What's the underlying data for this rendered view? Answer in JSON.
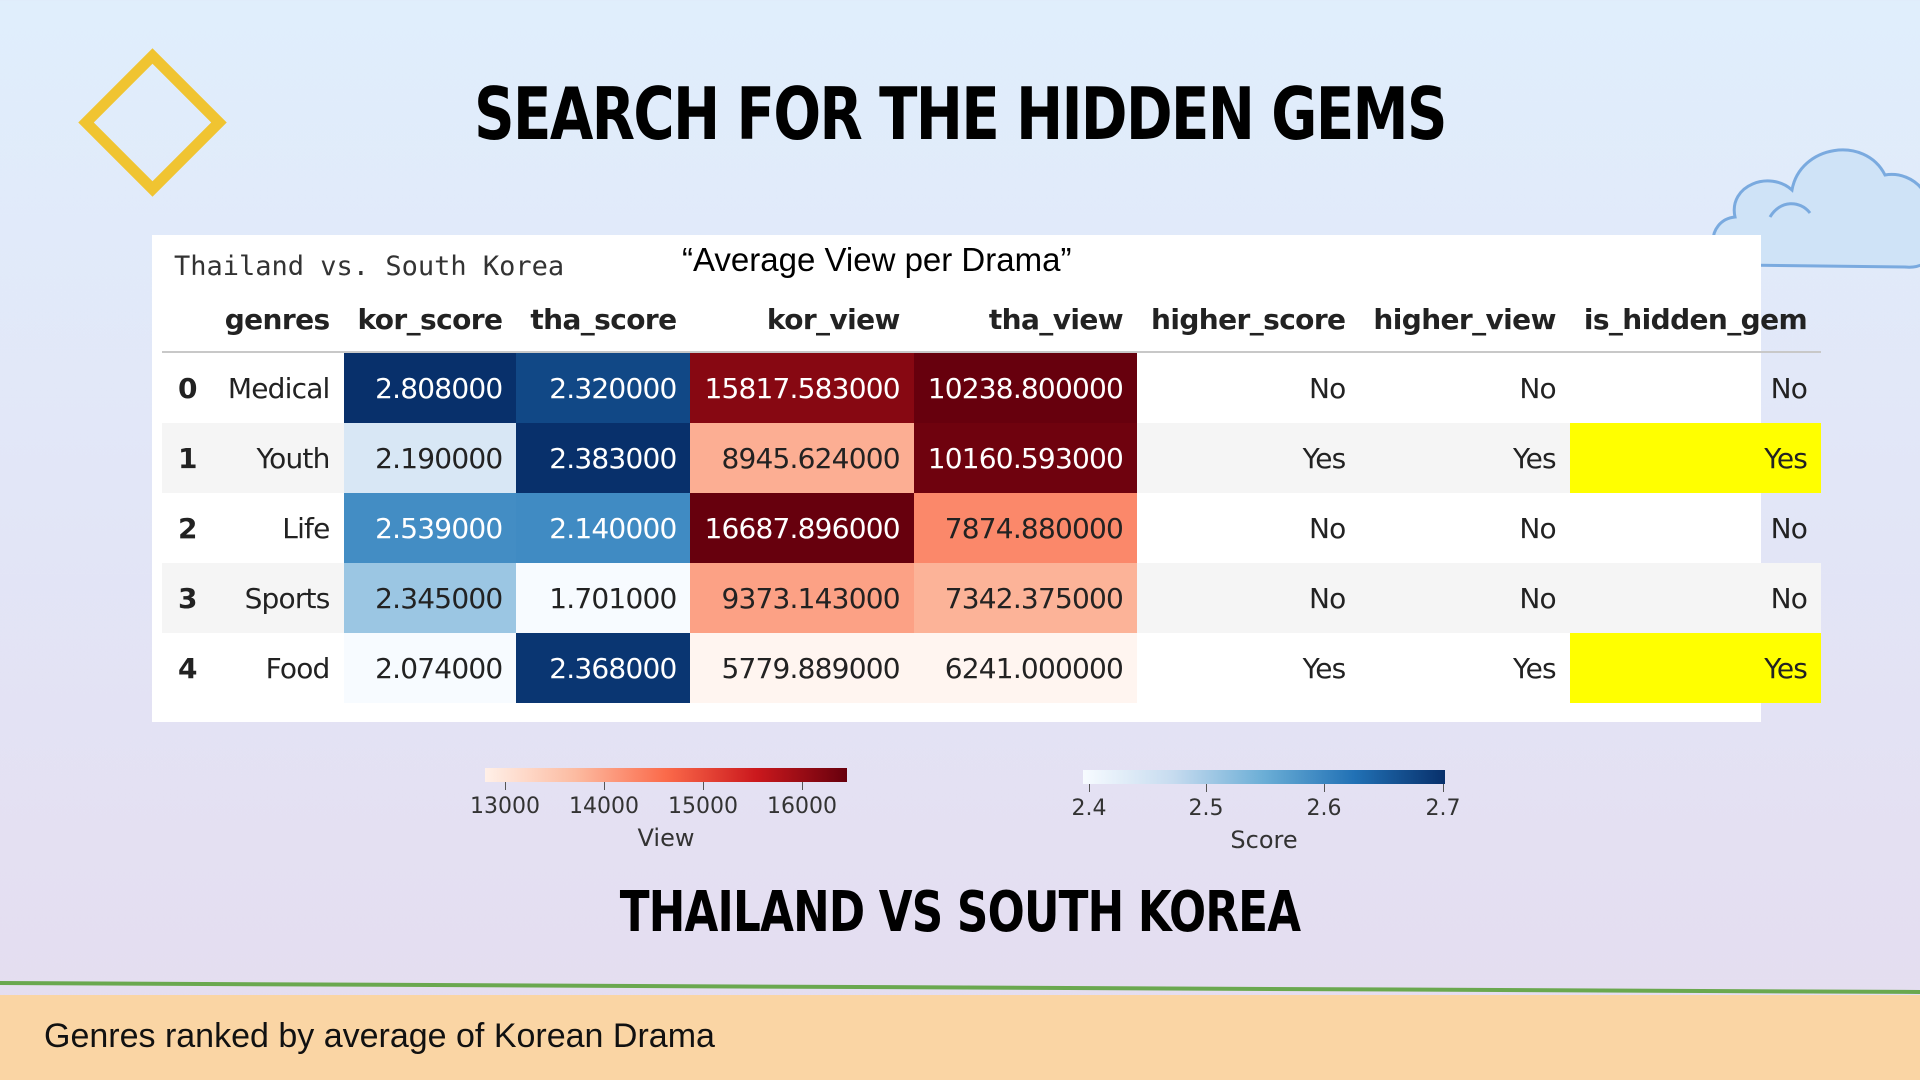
{
  "slide": {
    "title": "Search for the Hidden Gems",
    "subheading": "Thailand vs South Korea",
    "footer": "Genres ranked by average of Korean Drama"
  },
  "panel": {
    "caption": "Thailand vs. South Korea",
    "subtitle": "“Average View per Drama”"
  },
  "table": {
    "columns": [
      "genres",
      "kor_score",
      "tha_score",
      "kor_view",
      "tha_view",
      "higher_score",
      "higher_view",
      "is_hidden_gem"
    ],
    "rows": [
      {
        "index": "0",
        "genres": "Medical",
        "kor_score": "2.808000",
        "tha_score": "2.320000",
        "kor_view": "15817.583000",
        "tha_view": "10238.800000",
        "higher_score": "No",
        "higher_view": "No",
        "is_hidden_gem": "No"
      },
      {
        "index": "1",
        "genres": "Youth",
        "kor_score": "2.190000",
        "tha_score": "2.383000",
        "kor_view": "8945.624000",
        "tha_view": "10160.593000",
        "higher_score": "Yes",
        "higher_view": "Yes",
        "is_hidden_gem": "Yes"
      },
      {
        "index": "2",
        "genres": "Life",
        "kor_score": "2.539000",
        "tha_score": "2.140000",
        "kor_view": "16687.896000",
        "tha_view": "7874.880000",
        "higher_score": "No",
        "higher_view": "No",
        "is_hidden_gem": "No"
      },
      {
        "index": "3",
        "genres": "Sports",
        "kor_score": "2.345000",
        "tha_score": "1.701000",
        "kor_view": "9373.143000",
        "tha_view": "7342.375000",
        "higher_score": "No",
        "higher_view": "No",
        "is_hidden_gem": "No"
      },
      {
        "index": "4",
        "genres": "Food",
        "kor_score": "2.074000",
        "tha_score": "2.368000",
        "kor_view": "5779.889000",
        "tha_view": "6241.000000",
        "higher_score": "Yes",
        "higher_view": "Yes",
        "is_hidden_gem": "Yes"
      }
    ]
  },
  "colors": {
    "hidden_gem_highlight": "#ffff00",
    "score_scale": [
      "#f7fbff",
      "#c6dbef",
      "#6baed6",
      "#2171b5",
      "#08306b"
    ],
    "view_scale": [
      "#fff5f0",
      "#fcbba1",
      "#fb6a4a",
      "#cb181d",
      "#67000d"
    ],
    "footer_bg": "#fad5a4",
    "accent_line": "#6aa84f",
    "diamond": "#f0c431"
  },
  "legends": {
    "view": {
      "label": "View",
      "ticks": [
        "13000",
        "14000",
        "15000",
        "16000"
      ]
    },
    "score": {
      "label": "Score",
      "ticks": [
        "2.4",
        "2.5",
        "2.6",
        "2.7"
      ]
    }
  }
}
